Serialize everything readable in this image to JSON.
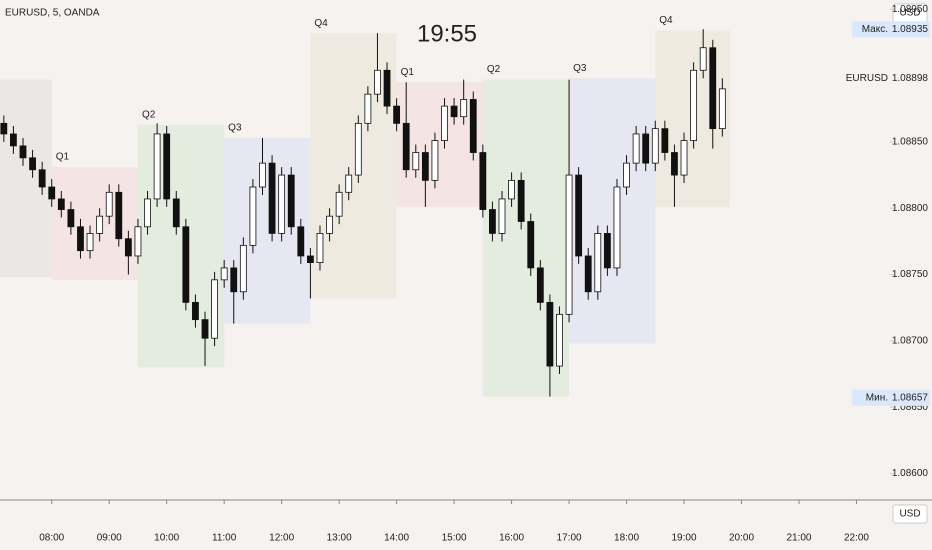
{
  "chart_data": {
    "type": "candlestick",
    "title": "EURUSD, 5, OANDA",
    "clock": "19:55",
    "currency": "USD",
    "xlim": [
      426,
      1355
    ],
    "ylim": [
      1.0858,
      1.08957
    ],
    "xticks": [
      {
        "value": 480,
        "label": "08:00"
      },
      {
        "value": 540,
        "label": "09:00"
      },
      {
        "value": 600,
        "label": "10:00"
      },
      {
        "value": 660,
        "label": "11:00"
      },
      {
        "value": 720,
        "label": "12:00"
      },
      {
        "value": 780,
        "label": "13:00"
      },
      {
        "value": 840,
        "label": "14:00"
      },
      {
        "value": 900,
        "label": "15:00"
      },
      {
        "value": 960,
        "label": "16:00"
      },
      {
        "value": 1020,
        "label": "17:00"
      },
      {
        "value": 1080,
        "label": "18:00"
      },
      {
        "value": 1140,
        "label": "19:00"
      },
      {
        "value": 1200,
        "label": "20:00"
      },
      {
        "value": 1260,
        "label": "21:00"
      },
      {
        "value": 1320,
        "label": "22:00"
      }
    ],
    "yticks": [
      {
        "value": 1.0895,
        "label": "1.08950"
      },
      {
        "value": 1.089,
        "label": "1.08900"
      },
      {
        "value": 1.0885,
        "label": "1.08850"
      },
      {
        "value": 1.088,
        "label": "1.08800"
      },
      {
        "value": 1.0875,
        "label": "1.08750"
      },
      {
        "value": 1.087,
        "label": "1.08700"
      },
      {
        "value": 1.0865,
        "label": "1.08650"
      },
      {
        "value": 1.086,
        "label": "1.08600"
      }
    ],
    "price_labels": [
      {
        "name": "Макс.",
        "value": 1.08935,
        "color": "#dbe8fb"
      },
      {
        "name": "EURUSD",
        "value": 1.08898,
        "color": "#f5f2f0"
      },
      {
        "name": "Мин.",
        "value": 1.08657,
        "color": "#dbe8fb"
      }
    ],
    "boxes": [
      {
        "label": null,
        "start": 380,
        "end": 480,
        "high": 1.08897,
        "low": 1.08748,
        "color": "rgba(140,140,140,0.10)"
      },
      {
        "label": "Q1",
        "start": 480,
        "end": 570,
        "high": 1.08831,
        "low": 1.08746,
        "color": "rgba(242,54,69,0.07)"
      },
      {
        "label": "Q2",
        "start": 570,
        "end": 660,
        "high": 1.08863,
        "low": 1.0868,
        "color": "rgba(76,175,80,0.10)"
      },
      {
        "label": "Q3",
        "start": 660,
        "end": 750,
        "high": 1.08853,
        "low": 1.08713,
        "color": "rgba(41,98,255,0.07)"
      },
      {
        "label": "Q4",
        "start": 750,
        "end": 840,
        "high": 1.08932,
        "low": 1.08732,
        "color": "rgba(200,180,110,0.12)"
      },
      {
        "label": "Q1",
        "start": 840,
        "end": 930,
        "high": 1.08895,
        "low": 1.08801,
        "color": "rgba(242,54,69,0.07)"
      },
      {
        "label": "Q2",
        "start": 930,
        "end": 1020,
        "high": 1.08897,
        "low": 1.08658,
        "color": "rgba(76,175,80,0.10)"
      },
      {
        "label": "Q3",
        "start": 1020,
        "end": 1110,
        "high": 1.08898,
        "low": 1.08698,
        "color": "rgba(41,98,255,0.07)"
      },
      {
        "label": "Q4",
        "start": 1110,
        "end": 1188,
        "high": 1.08934,
        "low": 1.08801,
        "color": "rgba(200,180,110,0.12)"
      }
    ],
    "x": [
      430,
      440,
      450,
      460,
      470,
      480,
      490,
      500,
      510,
      520,
      530,
      540,
      550,
      560,
      570,
      580,
      590,
      600,
      610,
      620,
      630,
      640,
      650,
      660,
      670,
      680,
      690,
      700,
      710,
      720,
      730,
      740,
      750,
      760,
      770,
      780,
      790,
      800,
      810,
      820,
      830,
      840,
      850,
      860,
      870,
      880,
      890,
      900,
      910,
      920,
      930,
      940,
      950,
      960,
      970,
      980,
      990,
      1000,
      1010,
      1020,
      1030,
      1040,
      1050,
      1060,
      1070,
      1080,
      1090,
      1100,
      1110,
      1120,
      1130,
      1140,
      1150,
      1160,
      1170,
      1180
    ],
    "open": [
      1.08864,
      1.08856,
      1.08847,
      1.08838,
      1.08829,
      1.08816,
      1.08807,
      1.08799,
      1.08786,
      1.08768,
      1.08781,
      1.08794,
      1.08812,
      1.08777,
      1.08764,
      1.08786,
      1.08807,
      1.08856,
      1.08807,
      1.08786,
      1.08729,
      1.08716,
      1.08702,
      1.08746,
      1.08755,
      1.08737,
      1.08772,
      1.08816,
      1.08834,
      1.08781,
      1.08825,
      1.08786,
      1.08764,
      1.08759,
      1.08781,
      1.08794,
      1.08812,
      1.08825,
      1.08864,
      1.08886,
      1.08904,
      1.08877,
      1.08864,
      1.08829,
      1.08842,
      1.08821,
      1.08851,
      1.08877,
      1.08869,
      1.08882,
      1.08842,
      1.08799,
      1.08781,
      1.08807,
      1.08821,
      1.0879,
      1.08755,
      1.08729,
      1.08681,
      1.0872,
      1.08825,
      1.08764,
      1.08737,
      1.08781,
      1.08755,
      1.08816,
      1.08834,
      1.08856,
      1.08834,
      1.0886,
      1.08842,
      1.08825,
      1.08851,
      1.08904,
      1.08921,
      1.0886
    ],
    "high": [
      1.0887,
      1.08862,
      1.08853,
      1.08844,
      1.08835,
      1.08822,
      1.08813,
      1.08805,
      1.08792,
      1.08787,
      1.088,
      1.08818,
      1.08818,
      1.08783,
      1.08792,
      1.08813,
      1.08864,
      1.08862,
      1.08813,
      1.08792,
      1.08735,
      1.08722,
      1.08752,
      1.08761,
      1.08761,
      1.08778,
      1.08822,
      1.08853,
      1.0884,
      1.08831,
      1.08831,
      1.08792,
      1.0877,
      1.08787,
      1.088,
      1.08818,
      1.08831,
      1.0887,
      1.08892,
      1.08932,
      1.0891,
      1.08883,
      1.08895,
      1.08848,
      1.08848,
      1.08857,
      1.08883,
      1.08883,
      1.08897,
      1.08888,
      1.08848,
      1.08805,
      1.08813,
      1.08827,
      1.08827,
      1.08796,
      1.08761,
      1.08735,
      1.08726,
      1.08897,
      1.08831,
      1.0877,
      1.08787,
      1.08787,
      1.08822,
      1.0884,
      1.08862,
      1.08862,
      1.08866,
      1.08866,
      1.08848,
      1.08857,
      1.0891,
      1.08935,
      1.08927,
      1.08898
    ],
    "low": [
      1.0885,
      1.08841,
      1.08832,
      1.08823,
      1.0881,
      1.08801,
      1.08793,
      1.0878,
      1.08762,
      1.08762,
      1.08775,
      1.08788,
      1.08771,
      1.0875,
      1.08758,
      1.0878,
      1.08801,
      1.08801,
      1.0878,
      1.08723,
      1.0871,
      1.08681,
      1.08696,
      1.0874,
      1.08713,
      1.08731,
      1.08766,
      1.0881,
      1.08775,
      1.08775,
      1.0878,
      1.08758,
      1.08732,
      1.08753,
      1.08775,
      1.08788,
      1.08806,
      1.08819,
      1.08858,
      1.0888,
      1.08871,
      1.08858,
      1.08823,
      1.08823,
      1.08801,
      1.08815,
      1.08845,
      1.08863,
      1.08863,
      1.08836,
      1.08793,
      1.08775,
      1.08775,
      1.08801,
      1.08784,
      1.08749,
      1.08723,
      1.08658,
      1.08675,
      1.08714,
      1.08758,
      1.08731,
      1.08731,
      1.08749,
      1.08749,
      1.0881,
      1.08828,
      1.08828,
      1.08828,
      1.08836,
      1.08801,
      1.08819,
      1.08845,
      1.08898,
      1.08845,
      1.08854
    ],
    "close": [
      1.08856,
      1.08847,
      1.08838,
      1.08829,
      1.08816,
      1.08807,
      1.08799,
      1.08786,
      1.08768,
      1.08781,
      1.08794,
      1.08812,
      1.08777,
      1.08764,
      1.08786,
      1.08807,
      1.08856,
      1.08807,
      1.08786,
      1.08729,
      1.08716,
      1.08702,
      1.08746,
      1.08755,
      1.08737,
      1.08772,
      1.08816,
      1.08834,
      1.08781,
      1.08825,
      1.08786,
      1.08764,
      1.08759,
      1.08781,
      1.08794,
      1.08812,
      1.08825,
      1.08864,
      1.08886,
      1.08904,
      1.08877,
      1.08864,
      1.08829,
      1.08842,
      1.08821,
      1.08851,
      1.08877,
      1.08869,
      1.08882,
      1.08842,
      1.08799,
      1.08781,
      1.08807,
      1.08821,
      1.0879,
      1.08755,
      1.08729,
      1.08681,
      1.0872,
      1.08825,
      1.08764,
      1.08737,
      1.08781,
      1.08755,
      1.08816,
      1.08834,
      1.08856,
      1.08834,
      1.0886,
      1.08842,
      1.08825,
      1.08851,
      1.08904,
      1.08921,
      1.0886,
      1.0889
    ]
  }
}
